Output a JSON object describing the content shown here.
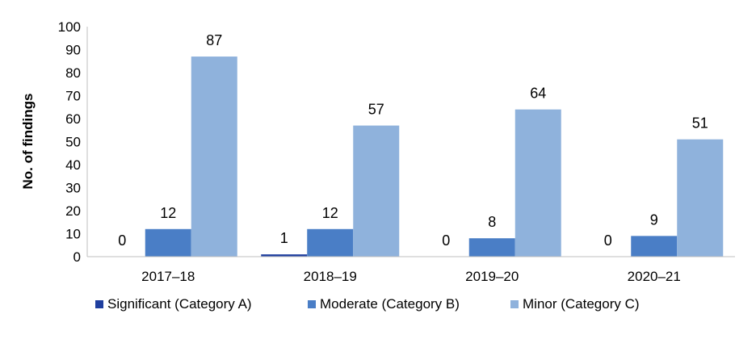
{
  "chart_data": {
    "type": "bar",
    "title": "",
    "xlabel": "",
    "ylabel": "No. of findings",
    "ylim": [
      0,
      100
    ],
    "yticks": [
      0,
      10,
      20,
      30,
      40,
      50,
      60,
      70,
      80,
      90,
      100
    ],
    "categories": [
      "2017–18",
      "2018–19",
      "2019–20",
      "2020–21"
    ],
    "series": [
      {
        "name": "Significant (Category A)",
        "values": [
          0,
          1,
          0,
          0
        ],
        "color": "#1f3f9f"
      },
      {
        "name": "Moderate (Category B)",
        "values": [
          12,
          12,
          8,
          9
        ],
        "color": "#4a7ec6"
      },
      {
        "name": "Minor (Category C)",
        "values": [
          87,
          57,
          64,
          51
        ],
        "color": "#8fb2dc"
      }
    ],
    "grid": false,
    "legend": "bottom"
  }
}
